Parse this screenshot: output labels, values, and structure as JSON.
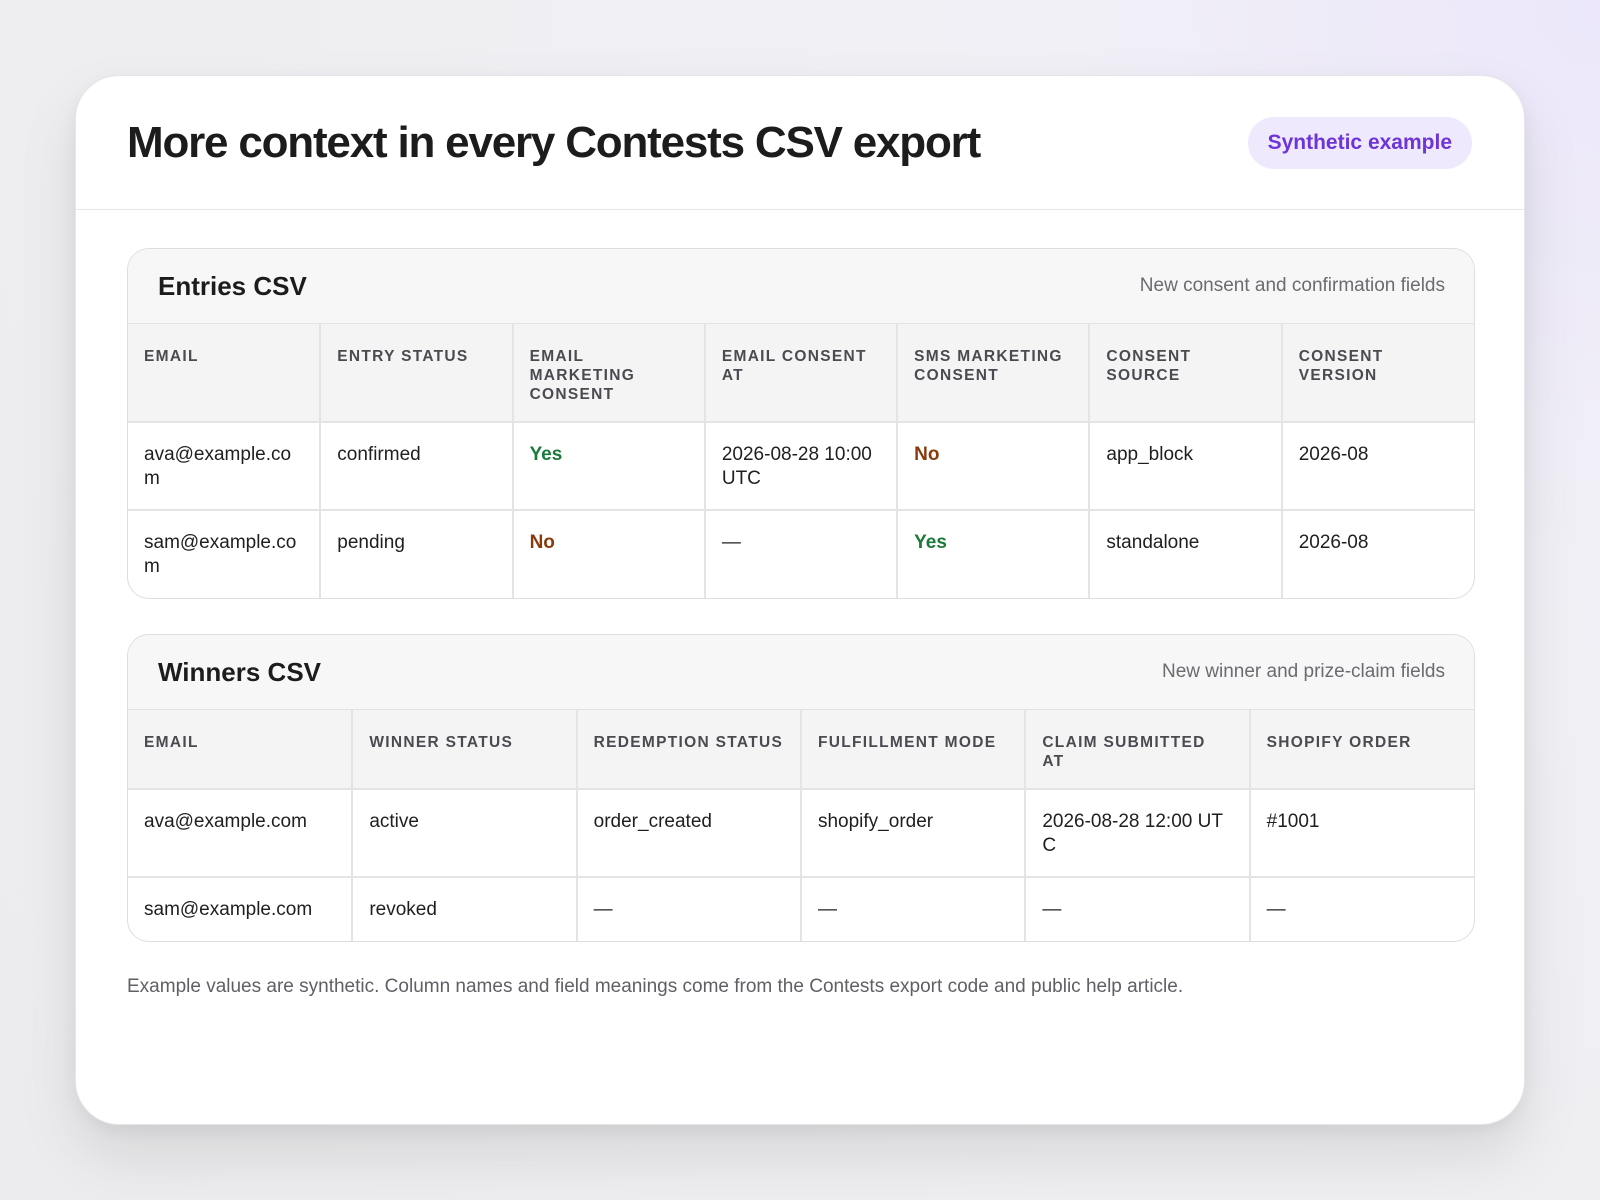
{
  "header": {
    "title": "More context in every Contests CSV export",
    "badge": "Synthetic example"
  },
  "entries": {
    "title": "Entries CSV",
    "subtitle": "New consent and confirmation fields",
    "columns": [
      "Email",
      "Entry status",
      "Email marketing consent",
      "Email consent at",
      "SMS marketing consent",
      "Consent source",
      "Consent version"
    ],
    "rows": [
      [
        "ava@example.com",
        "confirmed",
        "Yes",
        "2026-08-28 10:00 UTC",
        "No",
        "app_block",
        "2026-08"
      ],
      [
        "sam@example.com",
        "pending",
        "No",
        "—",
        "Yes",
        "standalone",
        "2026-08"
      ]
    ]
  },
  "winners": {
    "title": "Winners CSV",
    "subtitle": "New winner and prize-claim fields",
    "columns": [
      "Email",
      "Winner status",
      "Redemption status",
      "Fulfillment mode",
      "Claim submitted at",
      "Shopify order"
    ],
    "rows": [
      [
        "ava@example.com",
        "active",
        "order_created",
        "shopify_order",
        "2026-08-28 12:00 UTC",
        "#1001"
      ],
      [
        "sam@example.com",
        "revoked",
        "—",
        "—",
        "—",
        "—"
      ]
    ]
  },
  "footnote": "Example values are synthetic. Column names and field meanings come from the Contests export code and public help article.",
  "colors": {
    "accent": "#6d35d8",
    "badge_bg": "#efe9fd",
    "yes": "#1a7a3a",
    "no": "#8a3b0c"
  }
}
